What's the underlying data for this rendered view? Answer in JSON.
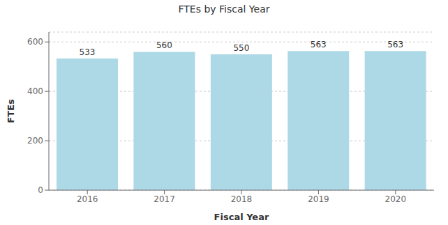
{
  "chart_data": {
    "type": "bar",
    "title": "FTEs by Fiscal Year",
    "xlabel": "Fiscal Year",
    "ylabel": "FTEs",
    "categories": [
      "2016",
      "2017",
      "2018",
      "2019",
      "2020"
    ],
    "values": [
      533,
      560,
      550,
      563,
      563
    ],
    "color": "#add8e6",
    "ylim": [
      0,
      640
    ],
    "yticks": [
      0,
      200,
      400,
      600
    ],
    "grid": true,
    "data_labels": true
  }
}
